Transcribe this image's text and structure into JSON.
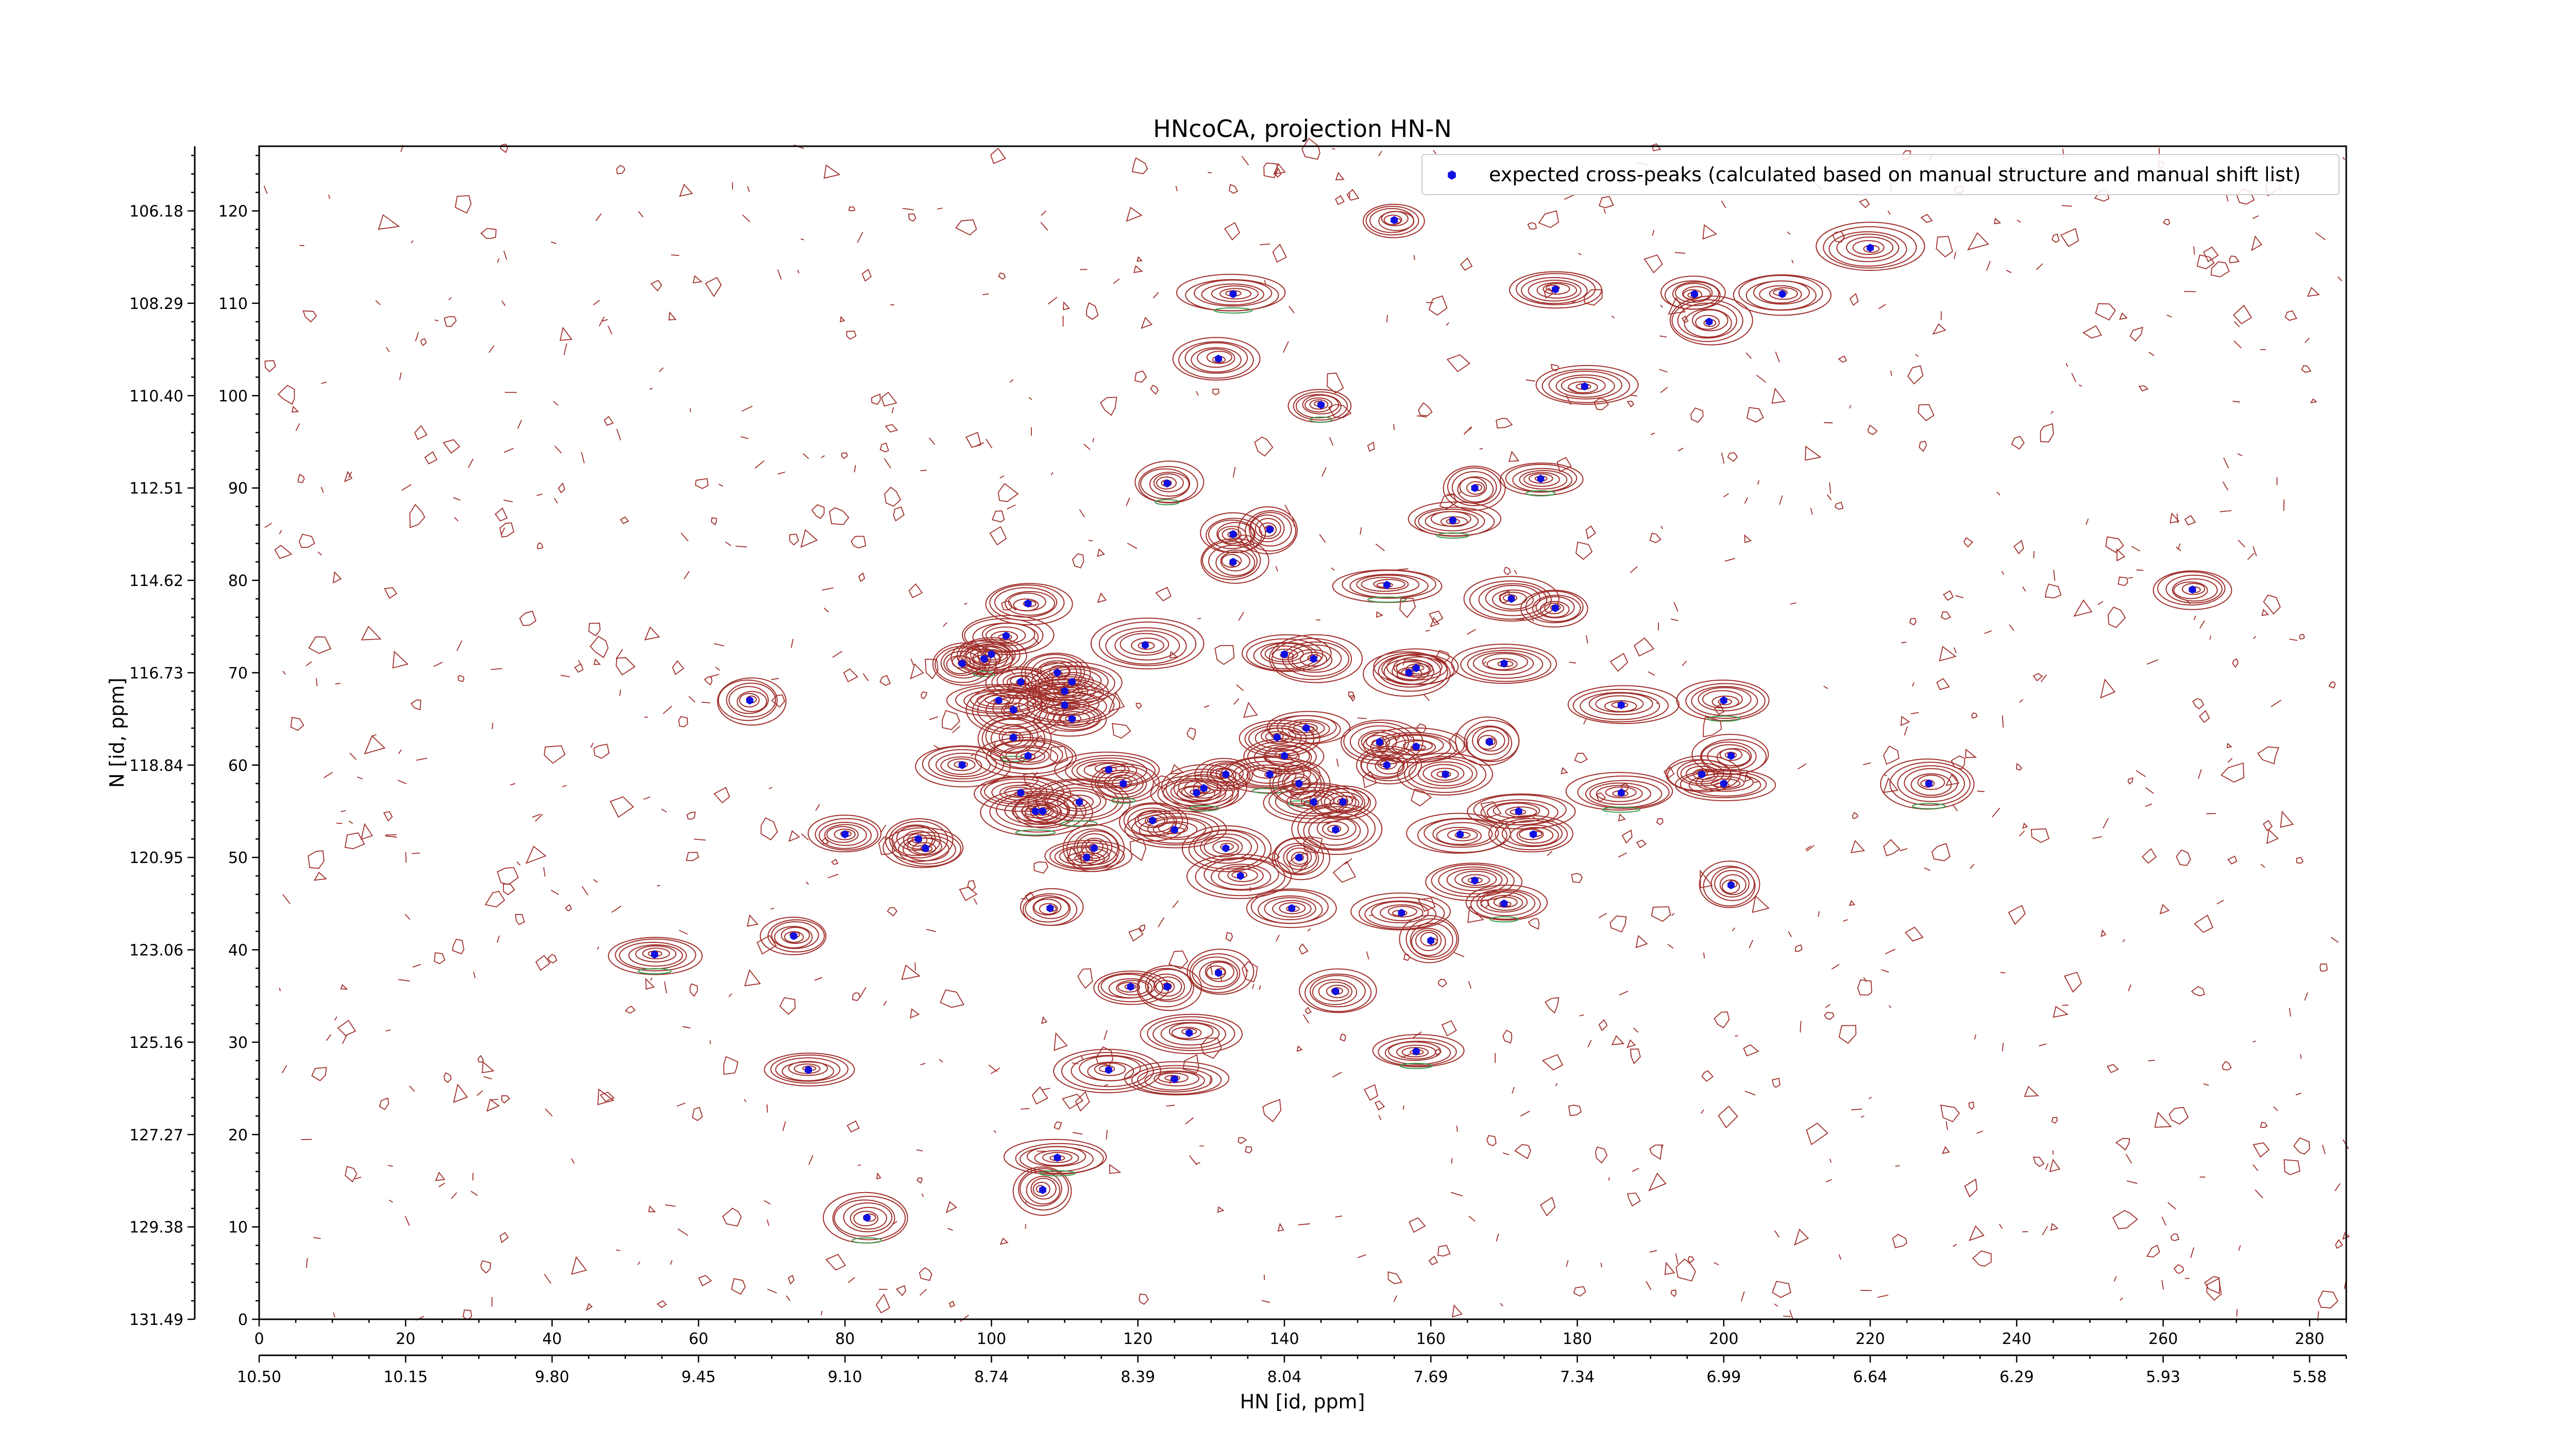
{
  "chart_data": {
    "type": "scatter",
    "title": "HNcoCA, projection HN-N",
    "xlabel": "HN [id, ppm]",
    "ylabel": "N [id, ppm]",
    "xlim": [
      0,
      285
    ],
    "ylim": [
      0,
      127
    ],
    "x_ticks": [
      "0",
      "20",
      "40",
      "60",
      "80",
      "100",
      "120",
      "140",
      "160",
      "180",
      "200",
      "220",
      "240",
      "260",
      "280"
    ],
    "y_ticks": [
      "0",
      "10",
      "20",
      "30",
      "40",
      "50",
      "60",
      "70",
      "80",
      "90",
      "100",
      "110",
      "120"
    ],
    "x_ticks_ppm": [
      "10.50",
      "10.15",
      "9.80",
      "9.45",
      "9.10",
      "8.74",
      "8.39",
      "8.04",
      "7.69",
      "7.34",
      "6.99",
      "6.64",
      "6.29",
      "5.93",
      "5.58"
    ],
    "y_ticks_ppm": [
      "131.49",
      "129.38",
      "127.27",
      "125.16",
      "123.06",
      "120.95",
      "118.84",
      "116.73",
      "114.62",
      "112.51",
      "110.40",
      "108.29",
      "106.18"
    ],
    "grid": false,
    "legend_position": "top-right",
    "colors": {
      "marker": "#1010e0",
      "contour": "#a0302c",
      "contour_neg": "#3a9a50"
    },
    "series": [
      {
        "name": "expected cross-peaks (calculated based on manual structure and manual shift list)",
        "marker": "hexagon",
        "points": [
          [
            54,
            39.5
          ],
          [
            67,
            67
          ],
          [
            73,
            41.5
          ],
          [
            75,
            27
          ],
          [
            80,
            52.5
          ],
          [
            83,
            11
          ],
          [
            90,
            52
          ],
          [
            91,
            51
          ],
          [
            96,
            60
          ],
          [
            96,
            71
          ],
          [
            99,
            71.5
          ],
          [
            100,
            72
          ],
          [
            101,
            67
          ],
          [
            102,
            74
          ],
          [
            103,
            66
          ],
          [
            103,
            63
          ],
          [
            104,
            57
          ],
          [
            104,
            69
          ],
          [
            105,
            61
          ],
          [
            105,
            77.5
          ],
          [
            106,
            55
          ],
          [
            107,
            55
          ],
          [
            107,
            14
          ],
          [
            108,
            44.5
          ],
          [
            109,
            70
          ],
          [
            109,
            17.5
          ],
          [
            110,
            68
          ],
          [
            110,
            66.5
          ],
          [
            111,
            65
          ],
          [
            111,
            69
          ],
          [
            112,
            56
          ],
          [
            113,
            50
          ],
          [
            114,
            51
          ],
          [
            116,
            59.5
          ],
          [
            116,
            27
          ],
          [
            118,
            58
          ],
          [
            119,
            36
          ],
          [
            121,
            73
          ],
          [
            122,
            54
          ],
          [
            124,
            36
          ],
          [
            124,
            90.5
          ],
          [
            125,
            26
          ],
          [
            125,
            53
          ],
          [
            127,
            31
          ],
          [
            128,
            57
          ],
          [
            129,
            57.5
          ],
          [
            131,
            104
          ],
          [
            131,
            37.5
          ],
          [
            132,
            51
          ],
          [
            132,
            59
          ],
          [
            133,
            111
          ],
          [
            133,
            85
          ],
          [
            133,
            82
          ],
          [
            134,
            48
          ],
          [
            138,
            85.5
          ],
          [
            138,
            59
          ],
          [
            139,
            63
          ],
          [
            140,
            72
          ],
          [
            140,
            61
          ],
          [
            141,
            44.5
          ],
          [
            142,
            58
          ],
          [
            142,
            50
          ],
          [
            143,
            64
          ],
          [
            144,
            56
          ],
          [
            144,
            71.5
          ],
          [
            145,
            99
          ],
          [
            147,
            53
          ],
          [
            147,
            35.5
          ],
          [
            148,
            56
          ],
          [
            153,
            62.5
          ],
          [
            154,
            79.5
          ],
          [
            154,
            60
          ],
          [
            155,
            119
          ],
          [
            156,
            44
          ],
          [
            157,
            70
          ],
          [
            158,
            29
          ],
          [
            158,
            70.5
          ],
          [
            158,
            62
          ],
          [
            160,
            41
          ],
          [
            162,
            59
          ],
          [
            163,
            86.5
          ],
          [
            164,
            52.5
          ],
          [
            166,
            47.5
          ],
          [
            166,
            90
          ],
          [
            168,
            62.5
          ],
          [
            170,
            45
          ],
          [
            170,
            71
          ],
          [
            171,
            78
          ],
          [
            172,
            55
          ],
          [
            174,
            52.5
          ],
          [
            175,
            91
          ],
          [
            177,
            111.5
          ],
          [
            177,
            77
          ],
          [
            181,
            101
          ],
          [
            186,
            66.5
          ],
          [
            186,
            57
          ],
          [
            196,
            111
          ],
          [
            197,
            59
          ],
          [
            198,
            108
          ],
          [
            200,
            58
          ],
          [
            200,
            67
          ],
          [
            201,
            61
          ],
          [
            201,
            47
          ],
          [
            208,
            111
          ],
          [
            220,
            116
          ],
          [
            228,
            58
          ],
          [
            264,
            79
          ]
        ]
      }
    ]
  }
}
